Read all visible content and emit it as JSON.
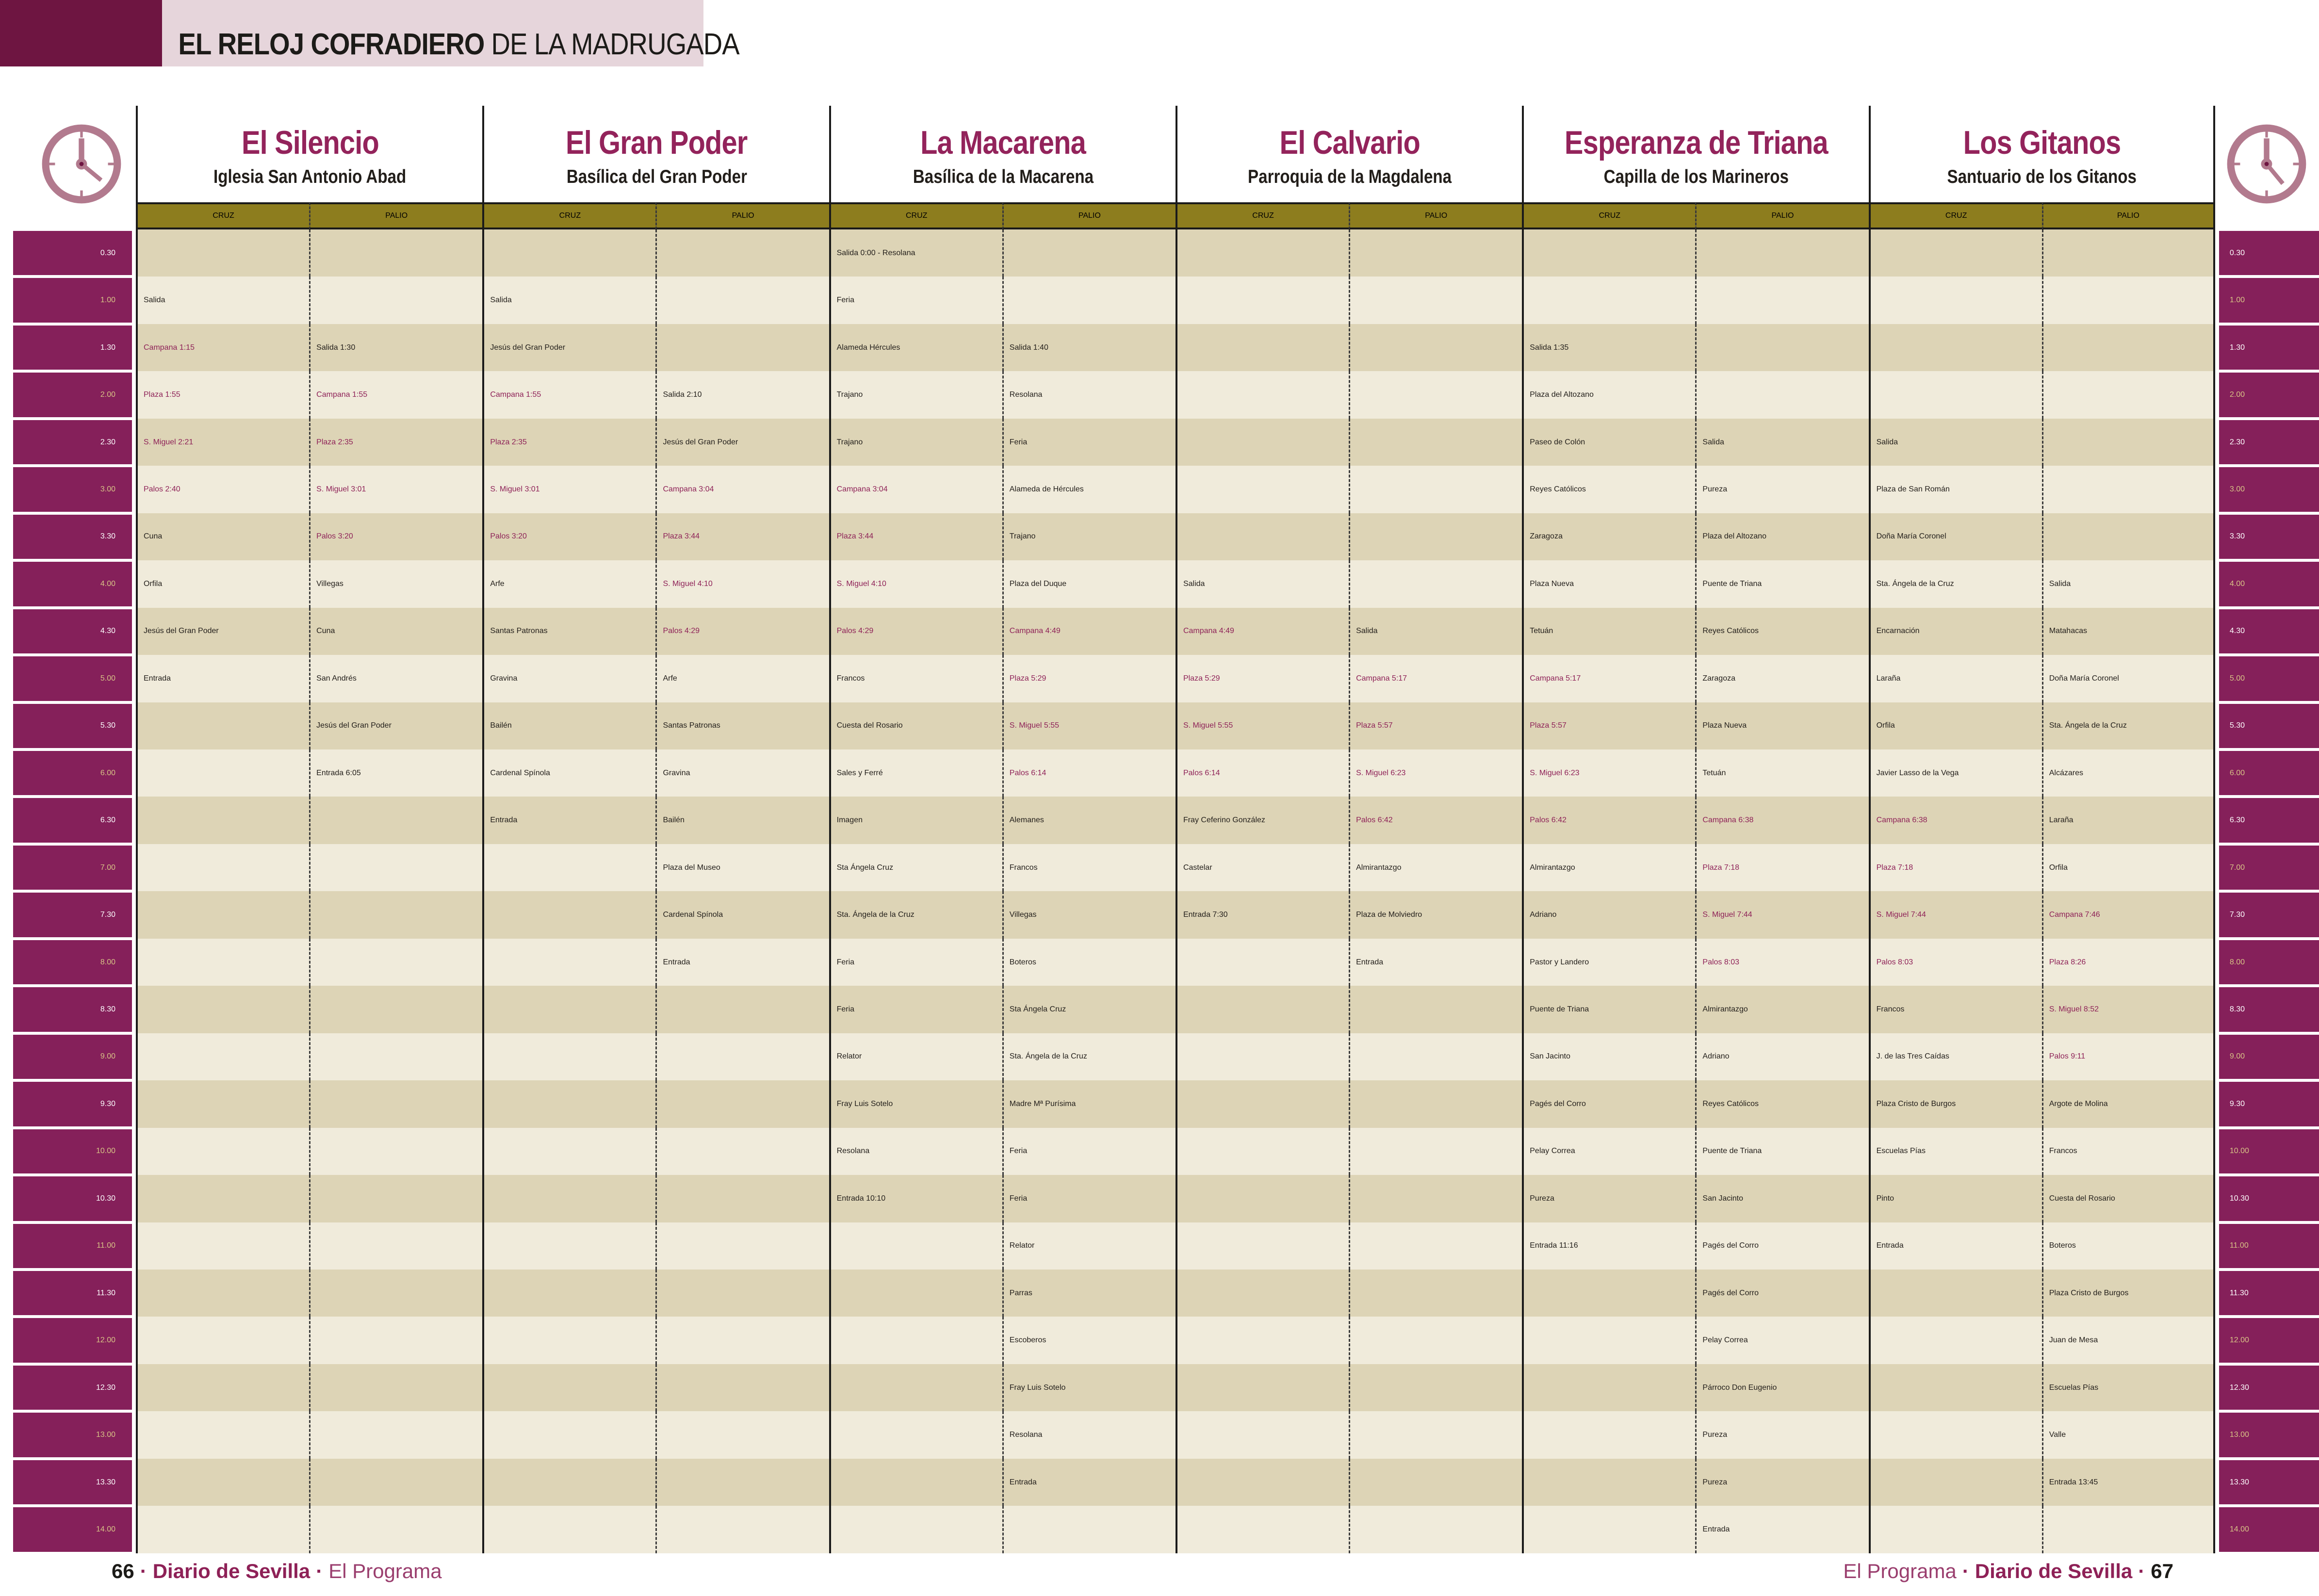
{
  "title": {
    "bold": "EL RELOJ COFRADIERO",
    "regular": "DE LA MADRUGADA"
  },
  "column_labels": {
    "cruz": "CRUZ",
    "palio": "PALIO"
  },
  "times": [
    "0.30",
    "1.00",
    "1.30",
    "2.00",
    "2.30",
    "3.00",
    "3.30",
    "4.00",
    "4.30",
    "5.00",
    "5.30",
    "6.00",
    "6.30",
    "7.00",
    "7.30",
    "8.00",
    "8.30",
    "9.00",
    "9.30",
    "10.00",
    "10.30",
    "11.00",
    "11.30",
    "12.00",
    "12.30",
    "13.00",
    "13.30",
    "14.00"
  ],
  "brotherhoods": [
    {
      "name": "El Silencio",
      "church": "Iglesia San Antonio Abad",
      "cruz": [
        "",
        "Salida",
        "Campana 1:15",
        "Plaza 1:55",
        "S. Miguel 2:21",
        "Palos 2:40",
        "Cuna",
        "Orfila",
        "Jesús del Gran Poder",
        "Entrada",
        "",
        "",
        "",
        "",
        "",
        "",
        "",
        "",
        "",
        "",
        "",
        "",
        "",
        "",
        "",
        "",
        "",
        ""
      ],
      "palio": [
        "",
        "",
        "Salida 1:30",
        "Campana 1:55",
        "Plaza 2:35",
        "S. Miguel 3:01",
        "Palos 3:20",
        "Villegas",
        "Cuna",
        "San Andrés",
        "Jesús del Gran Poder",
        "Entrada 6:05",
        "",
        "",
        "",
        "",
        "",
        "",
        "",
        "",
        "",
        "",
        "",
        "",
        "",
        "",
        "",
        ""
      ]
    },
    {
      "name": "El Gran Poder",
      "church": "Basílica del Gran Poder",
      "cruz": [
        "",
        "Salida",
        "Jesús del Gran Poder",
        "Campana 1:55",
        "Plaza 2:35",
        "S. Miguel 3:01",
        "Palos 3:20",
        "Arfe",
        "Santas Patronas",
        "Gravina",
        "Bailén",
        "Cardenal Spínola",
        "Entrada",
        "",
        "",
        "",
        "",
        "",
        "",
        "",
        "",
        "",
        "",
        "",
        "",
        "",
        "",
        ""
      ],
      "palio": [
        "",
        "",
        "",
        "Salida 2:10",
        "Jesús del Gran Poder",
        "Campana 3:04",
        "Plaza 3:44",
        "S. Miguel 4:10",
        "Palos 4:29",
        "Arfe",
        "Santas Patronas",
        "Gravina",
        "Bailén",
        "Plaza del Museo",
        "Cardenal Spínola",
        "Entrada",
        "",
        "",
        "",
        "",
        "",
        "",
        "",
        "",
        "",
        "",
        "",
        ""
      ]
    },
    {
      "name": "La Macarena",
      "church": "Basílica de la Macarena",
      "cruz": [
        "Salida 0:00 - Resolana",
        "Feria",
        "Alameda Hércules",
        "Trajano",
        "Trajano",
        "Campana 3:04",
        "Plaza 3:44",
        "S. Miguel 4:10",
        "Palos 4:29",
        "Francos",
        "Cuesta del Rosario",
        "Sales y Ferré",
        "Imagen",
        "Sta Ángela Cruz",
        "Sta. Ángela de la Cruz",
        "Feria",
        "Feria",
        "Relator",
        "Fray Luis Sotelo",
        "Resolana",
        "Entrada 10:10",
        "",
        "",
        "",
        "",
        "",
        "",
        ""
      ],
      "palio": [
        "",
        "",
        "Salida 1:40",
        "Resolana",
        "Feria",
        "Alameda de Hércules",
        "Trajano",
        "Plaza del Duque",
        "Campana 4:49",
        "Plaza 5:29",
        "S. Miguel 5:55",
        "Palos 6:14",
        "Alemanes",
        "Francos",
        "Villegas",
        "Boteros",
        "Sta Ángela Cruz",
        "Sta. Ángela de la Cruz",
        "Madre Mª Purísima",
        "Feria",
        "Feria",
        "Relator",
        "Parras",
        "Escoberos",
        "Fray Luis Sotelo",
        "Resolana",
        "Entrada",
        ""
      ]
    },
    {
      "name": "El Calvario",
      "church": "Parroquia de la Magdalena",
      "cruz": [
        "",
        "",
        "",
        "",
        "",
        "",
        "",
        "Salida",
        "Campana 4:49",
        "Plaza 5:29",
        "S. Miguel 5:55",
        "Palos 6:14",
        "Fray Ceferino González",
        "Castelar",
        "Entrada 7:30",
        "",
        "",
        "",
        "",
        "",
        "",
        "",
        "",
        "",
        "",
        "",
        "",
        ""
      ],
      "palio": [
        "",
        "",
        "",
        "",
        "",
        "",
        "",
        "",
        "Salida",
        "Campana 5:17",
        "Plaza 5:57",
        "S. Miguel 6:23",
        "Palos 6:42",
        "Almirantazgo",
        "Plaza de Molviedro",
        "Entrada",
        "",
        "",
        "",
        "",
        "",
        "",
        "",
        "",
        "",
        "",
        "",
        ""
      ]
    },
    {
      "name": "Esperanza de Triana",
      "church": "Capilla de los Marineros",
      "cruz": [
        "",
        "",
        "Salida 1:35",
        "Plaza del Altozano",
        "Paseo de Colón",
        "Reyes Católicos",
        "Zaragoza",
        "Plaza Nueva",
        "Tetuán",
        "Campana 5:17",
        "Plaza 5:57",
        "S. Miguel 6:23",
        "Palos 6:42",
        "Almirantazgo",
        "Adriano",
        "Pastor y Landero",
        "Puente de Triana",
        "San Jacinto",
        "Pagés del Corro",
        "Pelay Correa",
        "Pureza",
        "Entrada 11:16",
        "",
        "",
        "",
        "",
        "",
        ""
      ],
      "palio": [
        "",
        "",
        "",
        "",
        "Salida",
        "Pureza",
        "Plaza del Altozano",
        "Puente de Triana",
        "Reyes Católicos",
        "Zaragoza",
        "Plaza Nueva",
        "Tetuán",
        "Campana 6:38",
        "Plaza 7:18",
        "S. Miguel 7:44",
        "Palos 8:03",
        "Almirantazgo",
        "Adriano",
        "Reyes Católicos",
        "Puente de Triana",
        "San Jacinto",
        "Pagés del Corro",
        "Pagés del Corro",
        "Pelay Correa",
        "Párroco Don Eugenio",
        "Pureza",
        "Pureza",
        "Entrada"
      ]
    },
    {
      "name": "Los Gitanos",
      "church": "Santuario de los Gitanos",
      "cruz": [
        "",
        "",
        "",
        "",
        "Salida",
        "Plaza de San Román",
        "Doña María Coronel",
        "Sta. Ángela de la Cruz",
        "Encarnación",
        "Laraña",
        "Orfila",
        "Javier Lasso de la Vega",
        "Campana 6:38",
        "Plaza 7:18",
        "S. Miguel 7:44",
        "Palos 8:03",
        "Francos",
        "J. de las Tres Caídas",
        "Plaza Cristo de Burgos",
        "Escuelas Pías",
        "Pinto",
        "Entrada",
        "",
        "",
        "",
        "",
        "",
        ""
      ],
      "palio": [
        "",
        "",
        "",
        "",
        "",
        "",
        "",
        "Salida",
        "Matahacas",
        "Doña María Coronel",
        "Sta. Ángela de la Cruz",
        "Alcázares",
        "Laraña",
        "Orfila",
        "Campana 7:46",
        "Plaza 8:26",
        "S. Miguel 8:52",
        "Palos 9:11",
        "Argote de Molina",
        "Francos",
        "Cuesta del Rosario",
        "Boteros",
        "Plaza Cristo de Burgos",
        "Juan de Mesa",
        "Escuelas Pías",
        "Valle",
        "Entrada 13:45",
        ""
      ]
    }
  ],
  "footer": {
    "left_page": "66",
    "right_page": "67",
    "paper": "Diario de Sevilla",
    "program": "El Programa",
    "separator": "·"
  },
  "colors": {
    "corner": "#6E1541",
    "title_band": "#E6D5DB",
    "time_block": "#85205A",
    "time_gold": "#D8C386",
    "row_tan": "#DDD4B6",
    "row_cream": "#F0EBDB",
    "olive_band": "#8D7D1E",
    "maroon_text": "#8E2157",
    "clock_pink": "#B27A8E"
  }
}
